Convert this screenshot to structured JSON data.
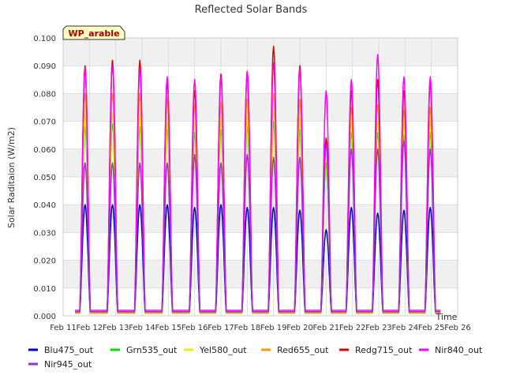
{
  "chart_data": {
    "type": "line",
    "title": "Reflected Solar Bands",
    "ylabel": "Solar Raditaion (W/m2)",
    "xlabel": "Time",
    "annotation": "WP_arable",
    "x_ticks": [
      "Feb 11",
      "Feb 12",
      "Feb 13",
      "Feb 14",
      "Feb 15",
      "Feb 16",
      "Feb 17",
      "Feb 18",
      "Feb 19",
      "Feb 20",
      "Feb 21",
      "Feb 22",
      "Feb 23",
      "Feb 24",
      "Feb 25",
      "Feb 26"
    ],
    "y_ticks": [
      "0.000",
      "0.010",
      "0.020",
      "0.030",
      "0.040",
      "0.050",
      "0.060",
      "0.070",
      "0.080",
      "0.090",
      "0.100"
    ],
    "xlim": [
      "2024-02-11",
      "2024-02-26"
    ],
    "ylim": [
      0.0,
      0.1
    ],
    "grid": true,
    "legend_position": "bottom",
    "day_centers": [
      "2024-02-11 20:00",
      "2024-02-12 21:00",
      "2024-02-13 22:00",
      "2024-02-14 23:00",
      "2024-02-16 00:00",
      "2024-02-17 00:00",
      "2024-02-18 00:00",
      "2024-02-19 00:00",
      "2024-02-20 00:00",
      "2024-02-21 00:00",
      "2024-02-21 23:00",
      "2024-02-22 23:00",
      "2024-02-23 23:00",
      "2024-02-24 23:00"
    ],
    "series": [
      {
        "name": "Blu475_out",
        "color": "#0000cc",
        "baseline": 0.001,
        "daily_peaks": [
          0.04,
          0.04,
          0.04,
          0.04,
          0.039,
          0.04,
          0.039,
          0.039,
          0.038,
          0.031,
          0.039,
          0.037,
          0.038,
          0.039
        ]
      },
      {
        "name": "Grn535_out",
        "color": "#00dd00",
        "baseline": 0.001,
        "daily_peaks": [
          0.068,
          0.069,
          0.068,
          0.067,
          0.066,
          0.067,
          0.068,
          0.07,
          0.067,
          0.055,
          0.066,
          0.066,
          0.065,
          0.066
        ]
      },
      {
        "name": "Yel580_out",
        "color": "#eeee00",
        "baseline": 0.001,
        "daily_peaks": [
          0.072,
          0.073,
          0.072,
          0.07,
          0.07,
          0.071,
          0.071,
          0.074,
          0.071,
          0.058,
          0.07,
          0.07,
          0.069,
          0.07
        ]
      },
      {
        "name": "Red655_out",
        "color": "#ff9900",
        "baseline": 0.001,
        "daily_peaks": [
          0.08,
          0.08,
          0.08,
          0.078,
          0.076,
          0.077,
          0.078,
          0.08,
          0.078,
          0.062,
          0.075,
          0.076,
          0.074,
          0.075
        ]
      },
      {
        "name": "Redg715_out",
        "color": "#dd0000",
        "baseline": 0.0015,
        "daily_peaks": [
          0.09,
          0.092,
          0.092,
          0.084,
          0.081,
          0.087,
          0.088,
          0.097,
          0.09,
          0.064,
          0.081,
          0.085,
          0.081,
          0.084
        ]
      },
      {
        "name": "Nir840_out",
        "color": "#ff00ff",
        "baseline": 0.002,
        "daily_peaks": [
          0.089,
          0.09,
          0.089,
          0.086,
          0.085,
          0.086,
          0.088,
          0.091,
          0.089,
          0.081,
          0.085,
          0.094,
          0.086,
          0.086
        ]
      },
      {
        "name": "Nir945_out",
        "color": "#9933cc",
        "baseline": 0.0015,
        "daily_peaks": [
          0.055,
          0.055,
          0.055,
          0.055,
          0.058,
          0.055,
          0.058,
          0.057,
          0.057,
          0.062,
          0.06,
          0.06,
          0.063,
          0.06
        ]
      }
    ]
  }
}
